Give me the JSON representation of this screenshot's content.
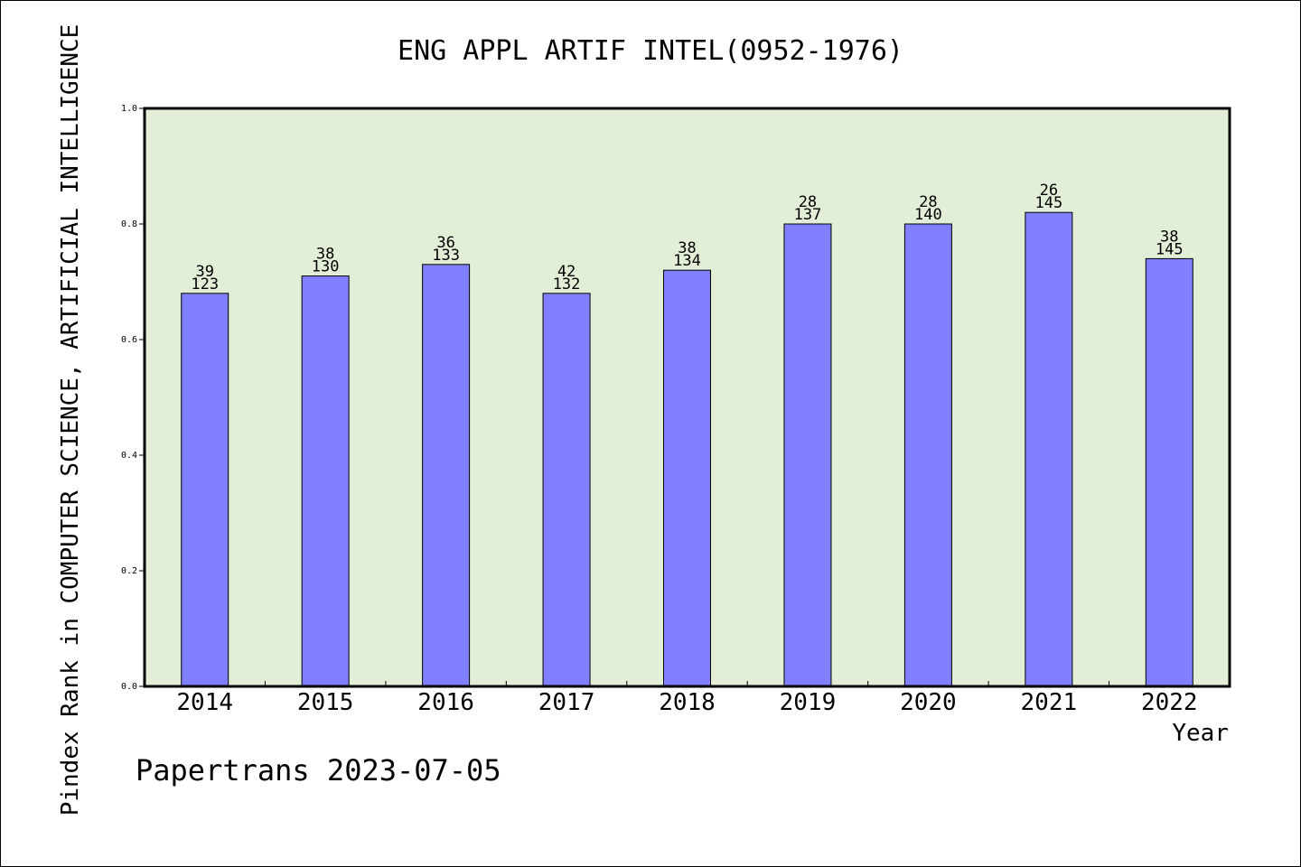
{
  "chart_data": {
    "type": "bar",
    "title": "ENG APPL ARTIF INTEL(0952-1976)",
    "xlabel": "Year",
    "ylabel": "Pindex Rank in COMPUTER SCIENCE, ARTIFICIAL INTELLIGENCE",
    "ylim": [
      0,
      1.0
    ],
    "yticks": [
      "0.0",
      "0.2",
      "0.4",
      "0.6",
      "0.8",
      "1.0"
    ],
    "categories": [
      "2014",
      "2015",
      "2016",
      "2017",
      "2018",
      "2019",
      "2020",
      "2021",
      "2022"
    ],
    "values": [
      0.68,
      0.71,
      0.73,
      0.68,
      0.72,
      0.8,
      0.8,
      0.82,
      0.74
    ],
    "rank_labels": [
      "39",
      "38",
      "36",
      "42",
      "38",
      "28",
      "28",
      "26",
      "38"
    ],
    "total_labels": [
      "123",
      "130",
      "133",
      "132",
      "134",
      "137",
      "140",
      "145",
      "145"
    ],
    "grid": false,
    "colors": {
      "bar": "#8080ff",
      "plot_bg": "#e2efd6",
      "axis": "#000000"
    }
  },
  "footer": "Papertrans 2023-07-05"
}
